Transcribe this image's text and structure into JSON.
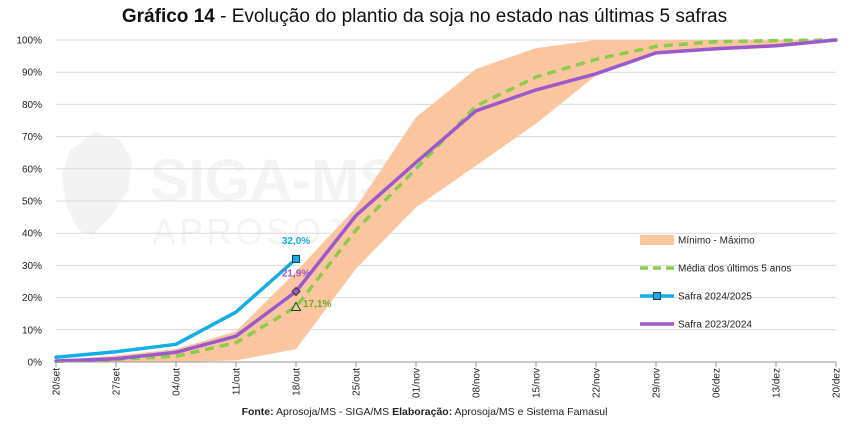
{
  "title": {
    "prefix": "Gráfico 14",
    "separator": " - ",
    "text": "Evolução do plantio da soja no estado nas últimas 5 safras"
  },
  "source": {
    "fonte_label": "Fonte:",
    "fonte_value": " Aprosoja/MS - SIGA/MS ",
    "elab_label": "Elaboração:",
    "elab_value": " Aprosoja/MS  e Sistema Famasul"
  },
  "watermark": {
    "text_1": "SIGA-MS",
    "text_2": "APROSOJA"
  },
  "chart_data": {
    "type": "line",
    "title": "Evolução do plantio da soja no estado nas últimas 5 safras",
    "x": [
      "20/set",
      "27/set",
      "04/out",
      "11/out",
      "18/out",
      "25/out",
      "01/nov",
      "08/nov",
      "15/nov",
      "22/nov",
      "29/nov",
      "06/dez",
      "13/dez",
      "20/dez"
    ],
    "y_ticks": [
      "0%",
      "10%",
      "20%",
      "30%",
      "40%",
      "50%",
      "60%",
      "70%",
      "80%",
      "90%",
      "100%"
    ],
    "ylim": [
      0,
      100
    ],
    "grid": true,
    "legend_position": "right",
    "band": {
      "name": "Mínimo - Máximo",
      "color": "#fbc69f",
      "min": [
        0,
        0,
        0,
        0.5,
        4,
        29,
        48,
        61,
        74,
        89,
        96,
        97.5,
        98,
        100
      ],
      "max": [
        0.5,
        2,
        4,
        9.5,
        28,
        48,
        76,
        91,
        97.5,
        100,
        100,
        100,
        100,
        100
      ]
    },
    "series": [
      {
        "name": "Média dos últimos 5 anos",
        "color": "#8ccc4c",
        "style": "dashed",
        "values": [
          0.2,
          0.8,
          1.8,
          6,
          17.1,
          41,
          60,
          79.5,
          88.5,
          94,
          98,
          99.5,
          99.8,
          100
        ]
      },
      {
        "name": "Safra 2024/2025",
        "color": "#14aee6",
        "style": "solid",
        "values": [
          1.5,
          3.2,
          5.5,
          15.5,
          32.0,
          null,
          null,
          null,
          null,
          null,
          null,
          null,
          null,
          null
        ]
      },
      {
        "name": "Safra 2023/2024",
        "color": "#9a5acc",
        "style": "solid",
        "values": [
          0.3,
          1,
          3,
          8,
          21.9,
          45.5,
          62,
          78,
          84.5,
          89.5,
          96,
          97.3,
          98.2,
          100
        ]
      }
    ],
    "labels": [
      {
        "series": "Safra 2024/2025",
        "index": 4,
        "text": "32,0%",
        "color": "#14aee6"
      },
      {
        "series": "Safra 2023/2024",
        "index": 4,
        "text": "21,9%",
        "color": "#9a5acc"
      },
      {
        "series": "Média dos últimos 5 anos",
        "index": 4,
        "text": "17,1%",
        "color": "#6aaa30"
      }
    ]
  }
}
